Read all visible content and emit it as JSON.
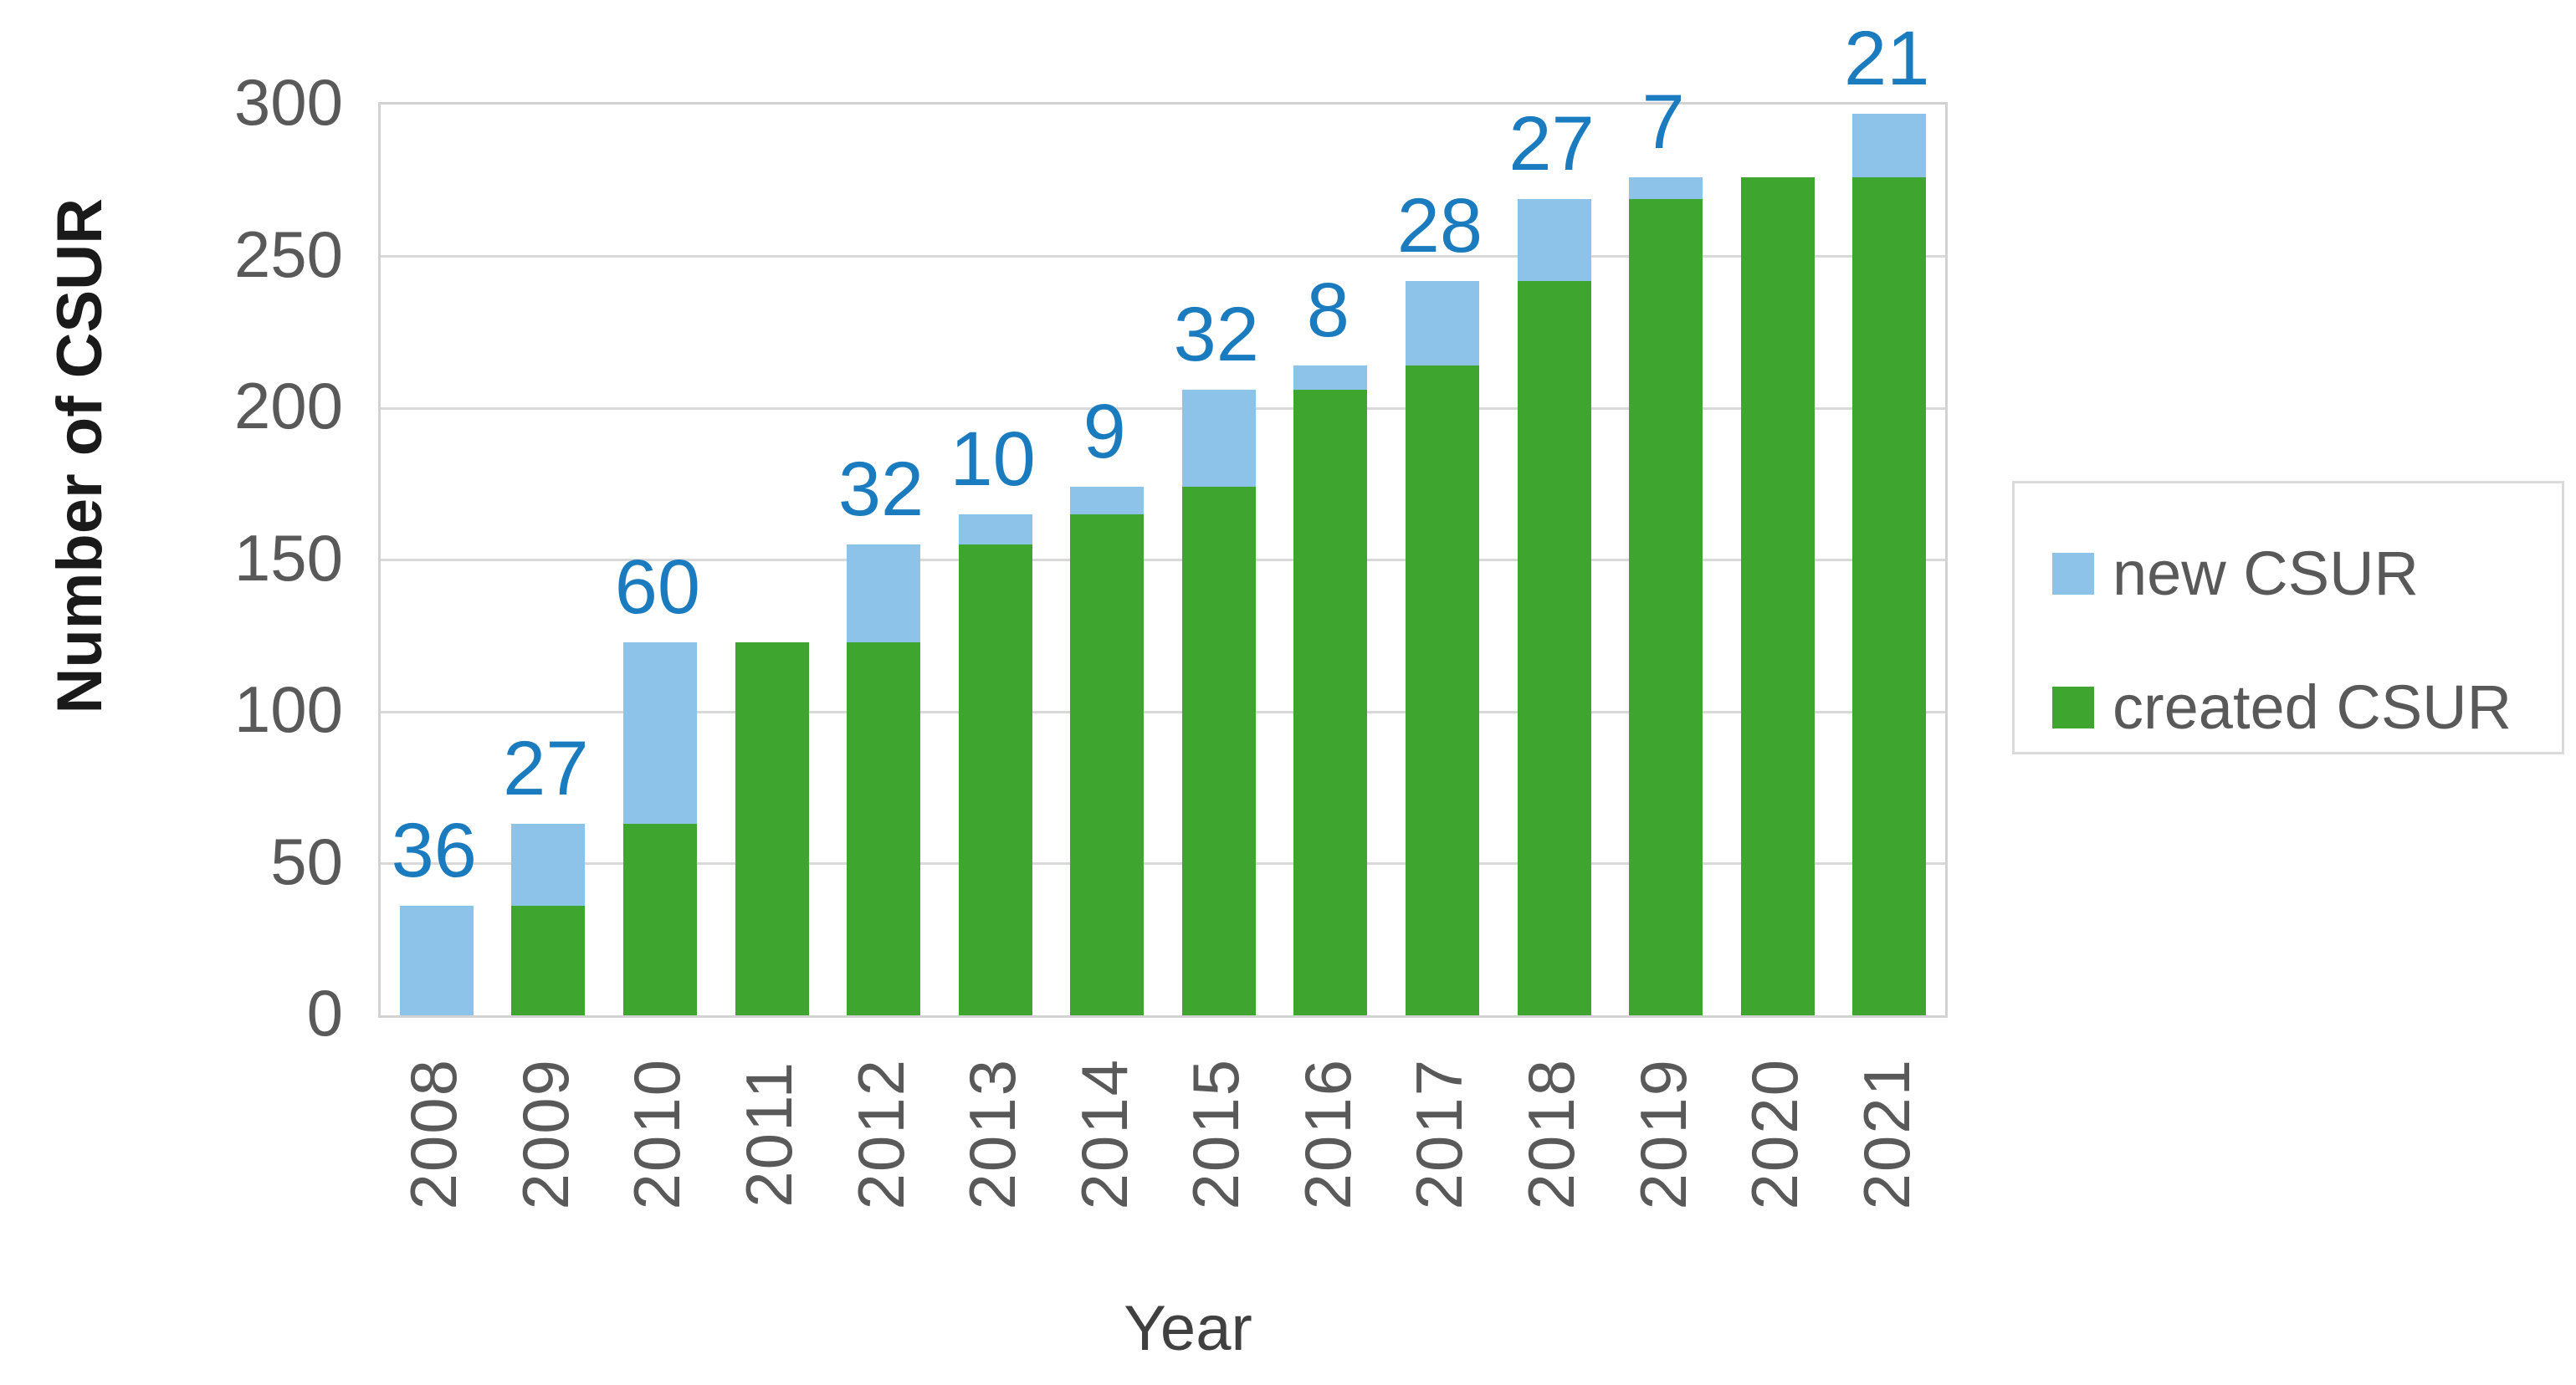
{
  "chart_data": {
    "type": "bar",
    "stacked": true,
    "title": "",
    "xlabel": "Year",
    "ylabel": "Number of CSUR",
    "categories": [
      "2008",
      "2009",
      "2010",
      "2011",
      "2012",
      "2013",
      "2014",
      "2015",
      "2016",
      "2017",
      "2018",
      "2019",
      "2020",
      "2021"
    ],
    "series": [
      {
        "name": "created CSUR",
        "color": "#3ea52e",
        "values": [
          0,
          36,
          63,
          123,
          123,
          155,
          165,
          174,
          206,
          214,
          242,
          269,
          276,
          276
        ]
      },
      {
        "name": "new CSUR",
        "color": "#8dc3e8",
        "values": [
          36,
          27,
          60,
          0,
          32,
          10,
          9,
          32,
          8,
          28,
          27,
          7,
          0,
          21
        ]
      }
    ],
    "data_labels": {
      "series": "new CSUR",
      "color": "#1b7bbf",
      "values": [
        "36",
        "27",
        "60",
        "",
        "32",
        "10",
        "9",
        "32",
        "8",
        "28",
        "27",
        "7",
        "",
        "21"
      ]
    },
    "y_axis": {
      "min": 0,
      "max": 300,
      "step": 50,
      "tick_labels": [
        "0",
        "50",
        "100",
        "150",
        "200",
        "250",
        "300"
      ]
    },
    "legend": {
      "position": "right",
      "items": [
        {
          "label": "new CSUR",
          "color": "#8dc3e8"
        },
        {
          "label": "created CSUR",
          "color": "#3ea52e"
        }
      ]
    },
    "grid": true,
    "colors": {
      "gridline": "#d9d9d9",
      "plot_border": "#d2d2d2",
      "tick_text": "#595959",
      "x_title_text": "#404040",
      "y_title_text": "#1a1a1a"
    }
  }
}
